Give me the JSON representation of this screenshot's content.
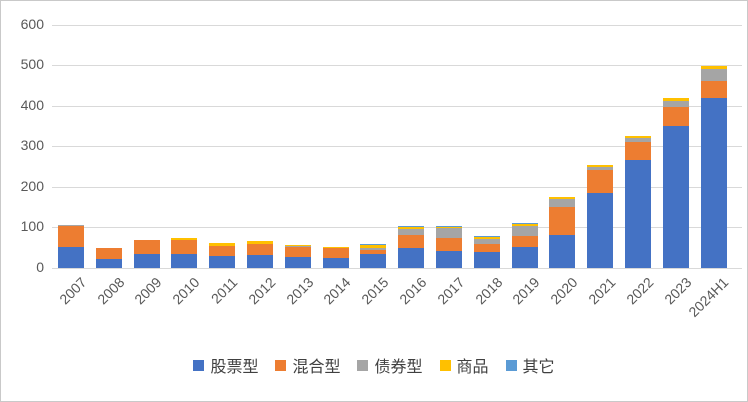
{
  "chart_data": {
    "type": "bar",
    "stacked": true,
    "title": "",
    "xlabel": "",
    "ylabel": "",
    "categories": [
      "2007",
      "2008",
      "2009",
      "2010",
      "2011",
      "2012",
      "2013",
      "2014",
      "2015",
      "2016",
      "2017",
      "2018",
      "2019",
      "2020",
      "2021",
      "2022",
      "2023",
      "2024H1"
    ],
    "series": [
      {
        "name": "股票型",
        "color": "#4472C4",
        "values": [
          52,
          21,
          35,
          34,
          29,
          32,
          26,
          24,
          35,
          48,
          42,
          39,
          53,
          80,
          184,
          265,
          351,
          418
        ]
      },
      {
        "name": "混合型",
        "color": "#ED7D31",
        "values": [
          51,
          29,
          35,
          36,
          26,
          27,
          25,
          25,
          10,
          33,
          31,
          21,
          27,
          69,
          58,
          45,
          45,
          44
        ]
      },
      {
        "name": "债券型",
        "color": "#A5A5A5",
        "values": [
          4,
          0,
          0,
          0,
          0,
          0,
          3,
          0,
          5,
          15,
          26,
          12,
          24,
          20,
          8,
          10,
          16,
          29
        ]
      },
      {
        "name": "商品",
        "color": "#FFC000",
        "values": [
          0,
          0,
          0,
          5,
          6,
          7,
          4,
          4,
          6,
          5,
          1,
          5,
          5,
          6,
          5,
          5,
          6,
          6
        ]
      },
      {
        "name": "其它",
        "color": "#5B9BD5",
        "values": [
          0,
          0,
          0,
          0,
          0,
          0,
          0,
          0,
          4,
          3,
          3,
          3,
          3,
          1,
          0,
          0,
          0,
          0
        ]
      }
    ],
    "ylim": [
      0,
      600
    ],
    "yticks": [
      0,
      100,
      200,
      300,
      400,
      500,
      600
    ],
    "grid": true,
    "legend_position": "bottom",
    "axis_text_color": "#595959",
    "gridline_color": "#D9D9D9"
  }
}
